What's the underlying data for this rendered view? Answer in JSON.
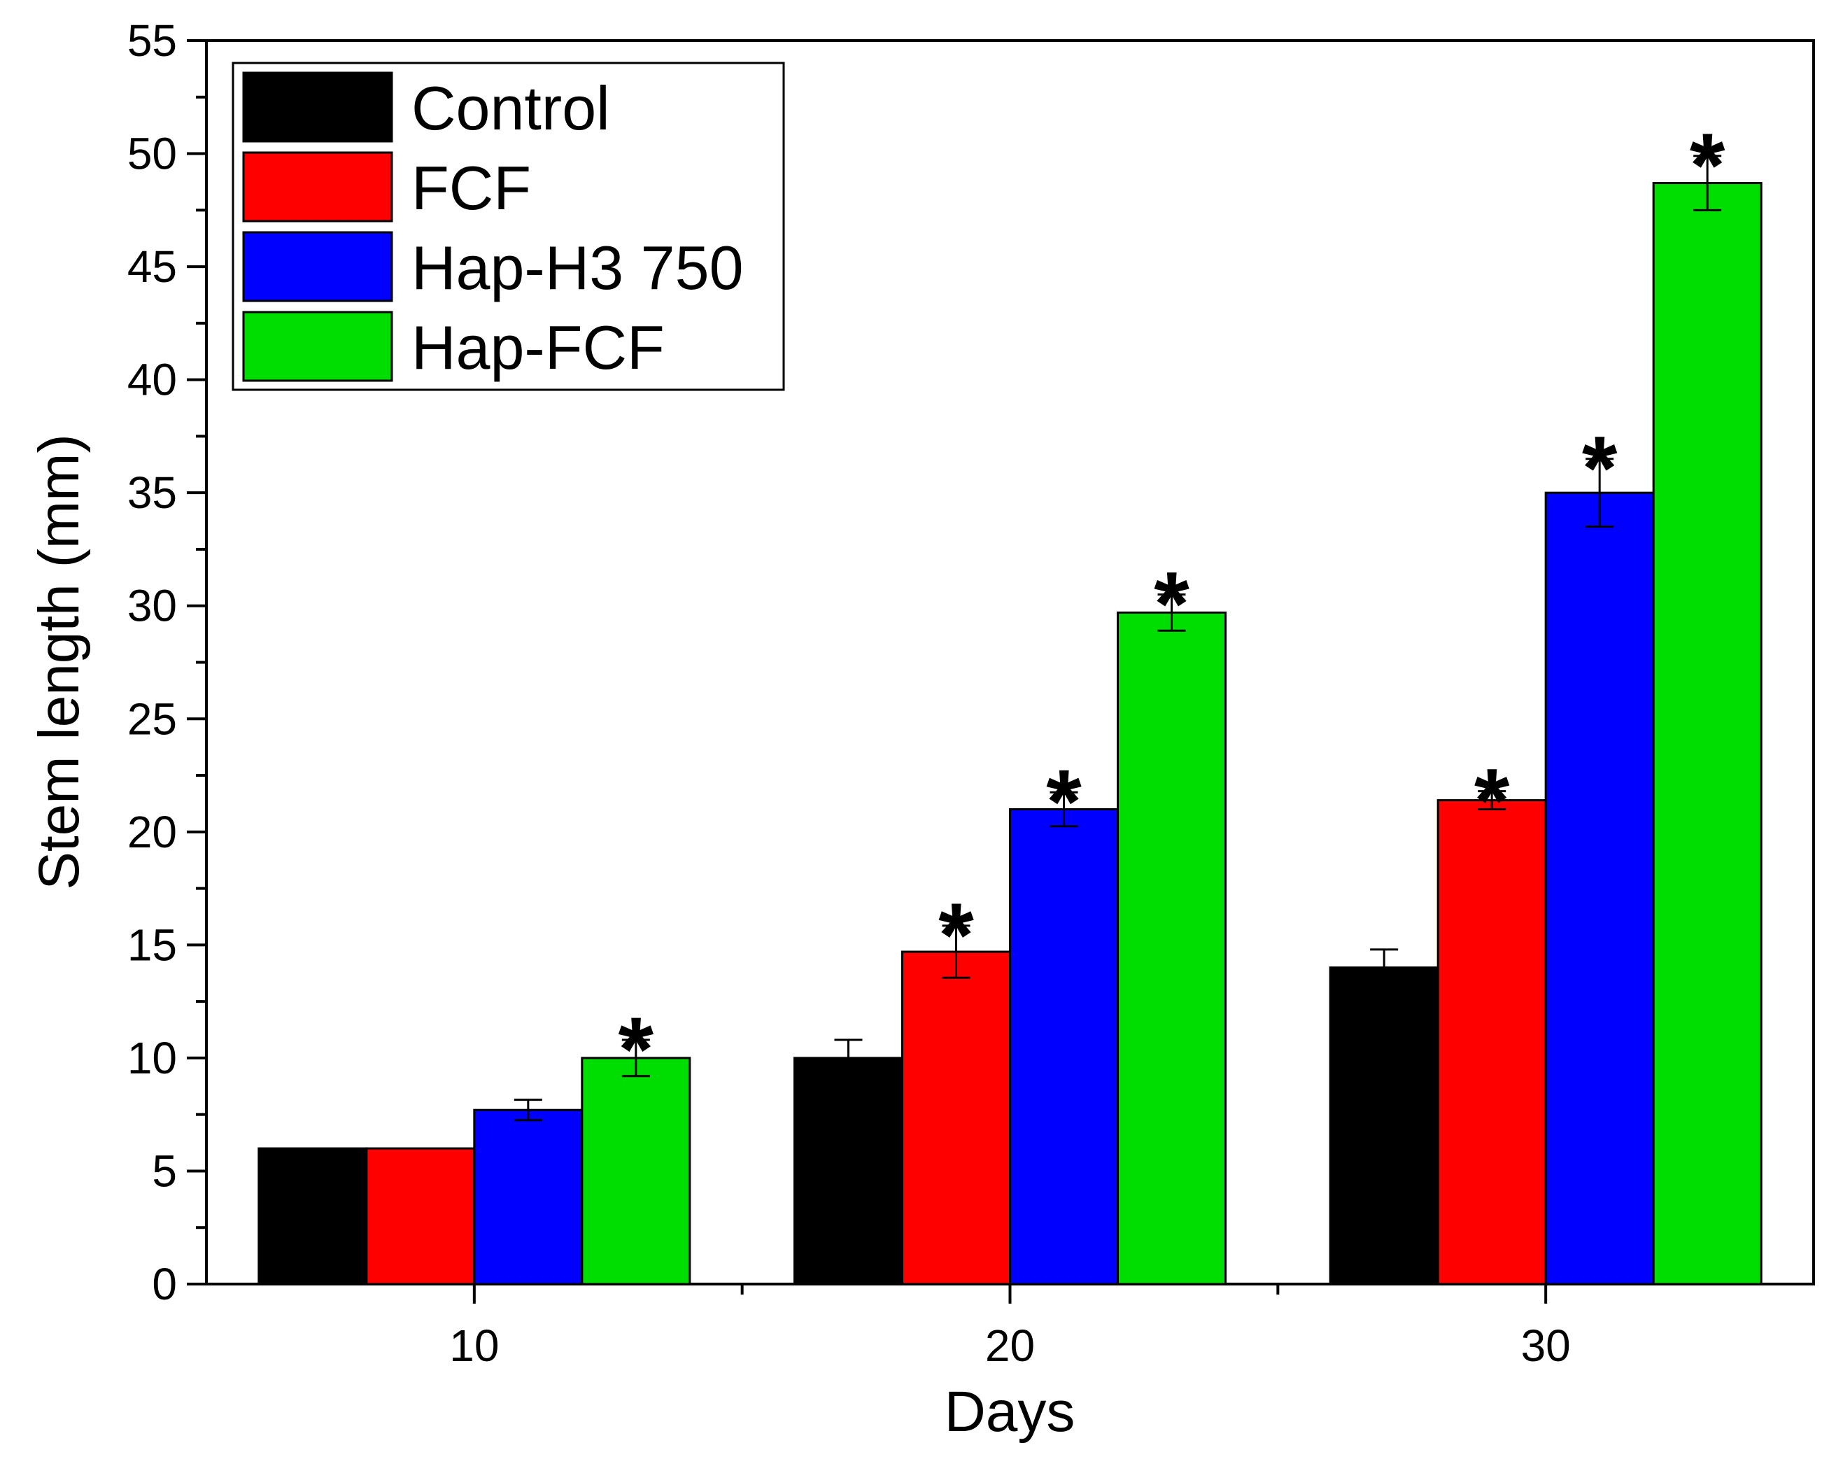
{
  "chart_data": {
    "type": "bar",
    "title": "",
    "xlabel": "Days",
    "ylabel": "Stem length (mm)",
    "ylim": [
      0,
      55
    ],
    "yticks": [
      0,
      5,
      10,
      15,
      20,
      25,
      30,
      35,
      40,
      45,
      50,
      55
    ],
    "categories": [
      "10",
      "20",
      "30"
    ],
    "legend_position": "top-left",
    "significance_marker": "*",
    "series": [
      {
        "name": "Control",
        "color": "#000000",
        "values": [
          6,
          10,
          14
        ],
        "errors": [
          0,
          0.8,
          0.8
        ],
        "significant": [
          false,
          false,
          false
        ]
      },
      {
        "name": "FCF",
        "color": "#ff0000",
        "values": [
          6,
          14.7,
          21.4
        ],
        "errors": [
          0,
          1.15,
          0.4
        ],
        "significant": [
          false,
          true,
          true
        ]
      },
      {
        "name": "Hap-H3 750",
        "color": "#0000ff",
        "values": [
          7.7,
          21,
          35
        ],
        "errors": [
          0.45,
          0.75,
          1.5
        ],
        "significant": [
          false,
          true,
          true
        ]
      },
      {
        "name": "Hap-FCF",
        "color": "#00dd00",
        "values": [
          10,
          29.7,
          48.7
        ],
        "errors": [
          0.8,
          0.8,
          1.2
        ],
        "significant": [
          true,
          true,
          true
        ]
      }
    ]
  }
}
